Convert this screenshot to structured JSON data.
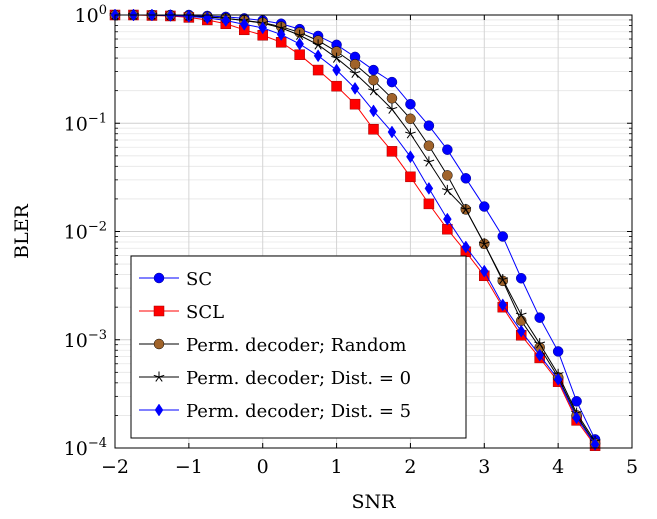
{
  "chart_data": {
    "type": "line",
    "title": "",
    "xlabel": "SNR",
    "ylabel": "BLER",
    "xlim": [
      -2,
      5
    ],
    "ylim": [
      0.0001,
      1
    ],
    "y_scale": "log",
    "grid": true,
    "legend_position": "bottom-left",
    "x_ticks": [
      "−2",
      "−1",
      "0",
      "1",
      "2",
      "3",
      "4",
      "5"
    ],
    "y_ticks": [
      {
        "base": "10",
        "exp": "0"
      },
      {
        "base": "10",
        "exp": "−1"
      },
      {
        "base": "10",
        "exp": "−2"
      },
      {
        "base": "10",
        "exp": "−3"
      },
      {
        "base": "10",
        "exp": "−4"
      }
    ],
    "x": [
      -2,
      -1.75,
      -1.5,
      -1.25,
      -1,
      -0.75,
      -0.5,
      -0.25,
      0,
      0.25,
      0.5,
      0.75,
      1,
      1.25,
      1.5,
      1.75,
      2,
      2.25,
      2.5,
      2.75,
      3,
      3.25,
      3.5,
      3.75,
      4,
      4.25,
      4.5
    ],
    "series": [
      {
        "name": "SC",
        "color": "#0000ff",
        "line_color": "#0000ff",
        "marker": "circle",
        "values": [
          1.0,
          1.0,
          1.0,
          1.0,
          1.0,
          0.98,
          0.96,
          0.93,
          0.89,
          0.83,
          0.74,
          0.64,
          0.53,
          0.41,
          0.31,
          0.24,
          0.15,
          0.095,
          0.057,
          0.031,
          0.017,
          0.009,
          0.0037,
          0.0016,
          0.00078,
          0.00027,
          0.00012
        ]
      },
      {
        "name": "SCL",
        "color": "#ff0000",
        "line_color": "#ff0000",
        "marker": "square",
        "values": [
          1.0,
          1.0,
          0.99,
          0.98,
          0.95,
          0.9,
          0.83,
          0.73,
          0.65,
          0.56,
          0.43,
          0.31,
          0.22,
          0.15,
          0.088,
          0.055,
          0.032,
          0.018,
          0.0105,
          0.0065,
          0.0039,
          0.002,
          0.0011,
          0.00068,
          0.00041,
          0.00018,
          0.000105
        ]
      },
      {
        "name": "Perm. decoder; Random",
        "color": "#a0632a",
        "line_color": "#000000",
        "marker": "circle",
        "values": [
          1.0,
          1.0,
          1.0,
          0.99,
          0.98,
          0.96,
          0.93,
          0.89,
          0.85,
          0.78,
          0.69,
          0.58,
          0.46,
          0.35,
          0.25,
          0.17,
          0.11,
          0.062,
          0.033,
          0.016,
          0.0077,
          0.0035,
          0.0015,
          0.00085,
          0.00045,
          0.0002,
          0.00011
        ]
      },
      {
        "name": "Perm. decoder; Dist. = 0",
        "color": "#000000",
        "line_color": "#000000",
        "marker": "star",
        "values": [
          1.0,
          1.0,
          1.0,
          0.99,
          0.98,
          0.96,
          0.93,
          0.89,
          0.84,
          0.76,
          0.65,
          0.53,
          0.4,
          0.29,
          0.2,
          0.135,
          0.08,
          0.044,
          0.024,
          0.016,
          0.0077,
          0.0036,
          0.0017,
          0.00092,
          0.00048,
          0.00021,
          0.000115
        ]
      },
      {
        "name": "Perm. decoder; Dist. = 5",
        "color": "#0000ff",
        "line_color": "#0000ff",
        "marker": "diamond",
        "values": [
          1.0,
          1.0,
          1.0,
          0.99,
          0.97,
          0.94,
          0.89,
          0.82,
          0.76,
          0.66,
          0.54,
          0.42,
          0.31,
          0.21,
          0.13,
          0.083,
          0.049,
          0.025,
          0.013,
          0.0072,
          0.0043,
          0.0021,
          0.0012,
          0.00072,
          0.00043,
          0.00019,
          0.000108
        ]
      }
    ]
  }
}
